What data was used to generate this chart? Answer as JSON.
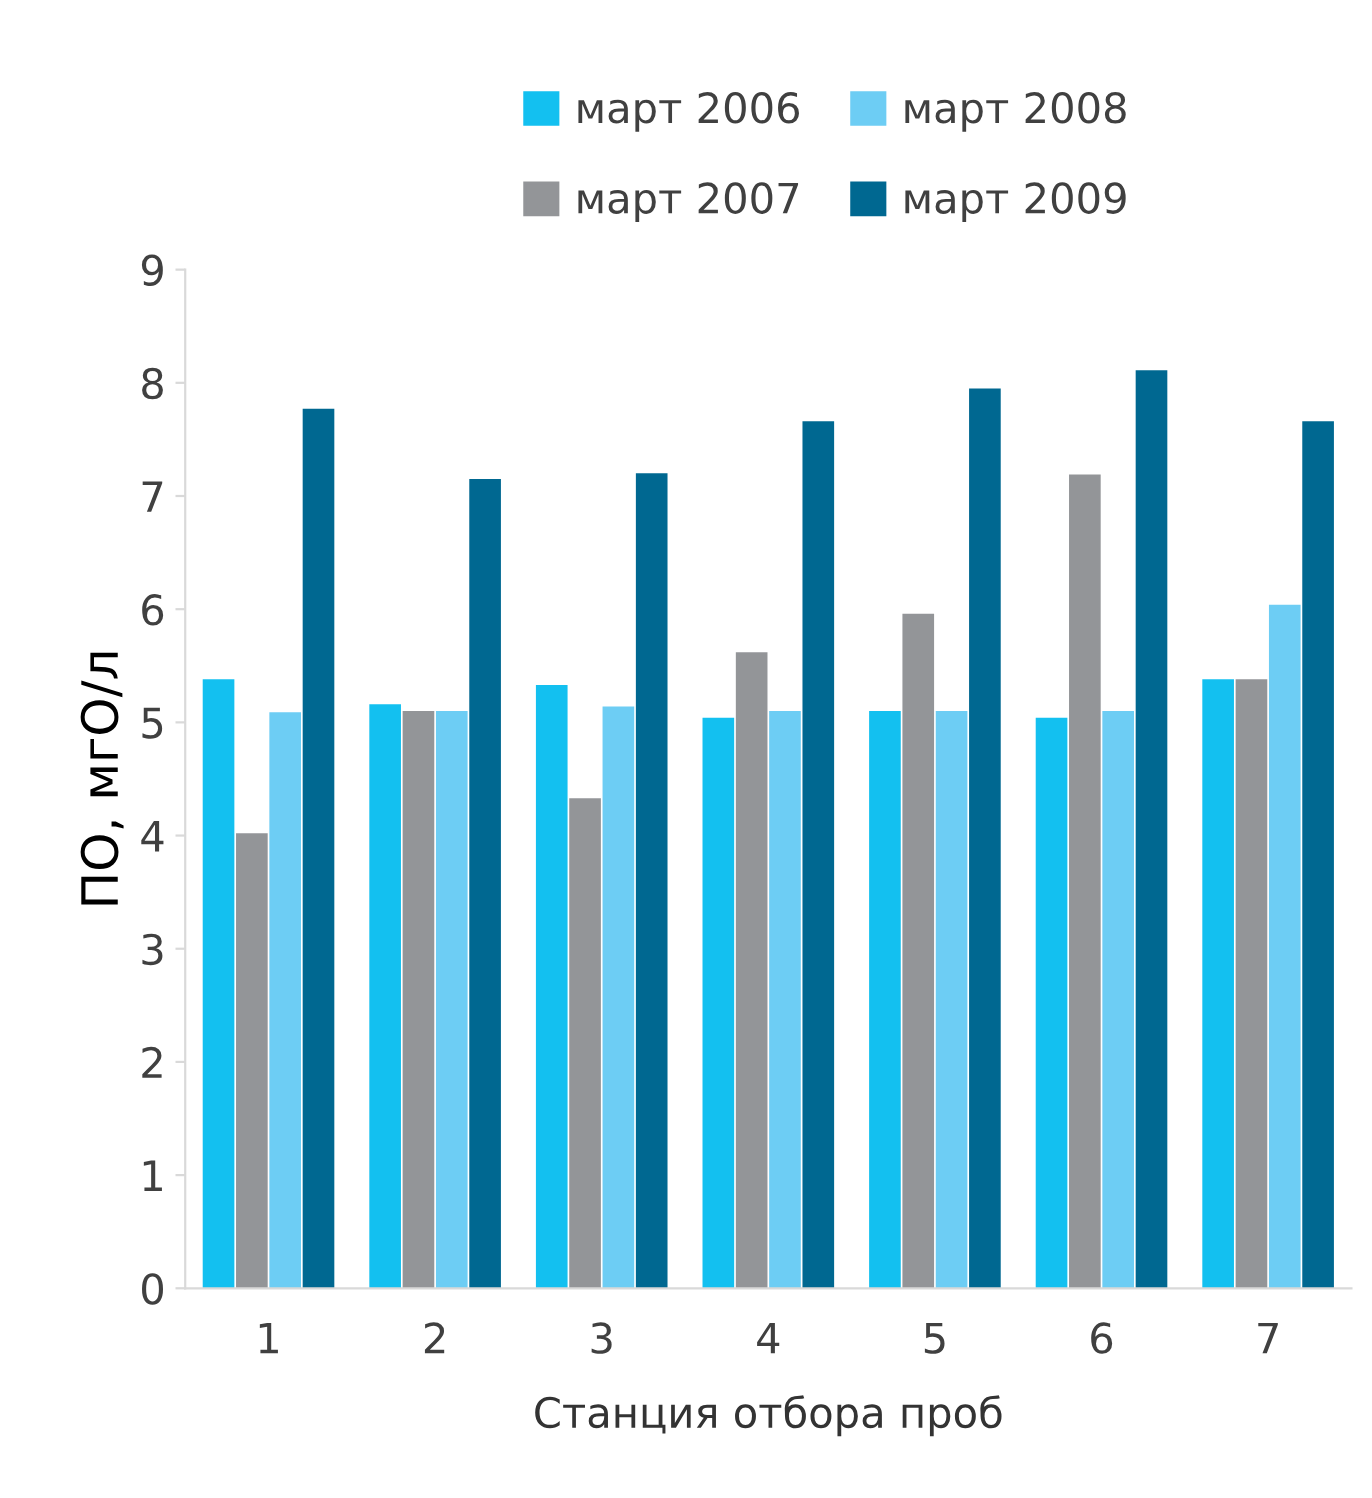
{
  "chart_data": {
    "type": "bar",
    "xlabel": "Станция отбора проб",
    "ylabel": "ПО, мгО/л",
    "categories": [
      "1",
      "2",
      "3",
      "4",
      "5",
      "6",
      "7"
    ],
    "series": [
      {
        "name": "март 2006",
        "color": "#13c0f0",
        "values": [
          5.38,
          5.16,
          5.33,
          5.04,
          5.1,
          5.04,
          5.38
        ]
      },
      {
        "name": "март 2007",
        "color": "#939598",
        "values": [
          4.02,
          5.1,
          4.33,
          5.62,
          5.96,
          7.19,
          5.38
        ]
      },
      {
        "name": "март 2008",
        "color": "#6dcdf4",
        "values": [
          5.09,
          5.1,
          5.14,
          5.1,
          5.1,
          5.1,
          6.04
        ]
      },
      {
        "name": "март 2009",
        "color": "#006891",
        "values": [
          7.77,
          7.15,
          7.2,
          7.66,
          7.95,
          8.11,
          7.66
        ]
      }
    ],
    "ylim": [
      0,
      9
    ],
    "yticks": [
      0,
      1,
      2,
      3,
      4,
      5,
      6,
      7,
      8,
      9
    ],
    "grid": false,
    "legend": "top"
  }
}
